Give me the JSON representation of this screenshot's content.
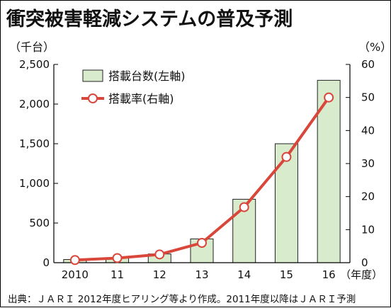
{
  "title": "衝突被害軽減システムの普及予測",
  "footer": "出典：ＪＡＲＩ 2012年度ヒアリング等より作成。2011年度以降はＪＡＲＩ予測",
  "chart_data": {
    "type": "bar",
    "categories": [
      "2010",
      "11",
      "12",
      "13",
      "14",
      "15",
      "16"
    ],
    "x_suffix": "（年度）",
    "series": [
      {
        "name": "搭載台数(左軸)",
        "type": "bar",
        "axis": "left",
        "values": [
          40,
          60,
          110,
          300,
          800,
          1500,
          2300
        ]
      },
      {
        "name": "搭載率(右軸)",
        "type": "line",
        "axis": "right",
        "values": [
          0.8,
          1.4,
          2.5,
          6.0,
          16.8,
          32.0,
          50.0
        ]
      }
    ],
    "left_axis": {
      "unit": "（千台）",
      "ylim": [
        0,
        2500
      ],
      "ticks": [
        "0",
        "500",
        "1,000",
        "1,500",
        "2,000",
        "2,500"
      ]
    },
    "right_axis": {
      "unit": "（%）",
      "ylim": [
        0,
        60
      ],
      "ticks": [
        "0",
        "10",
        "20",
        "30",
        "40",
        "50",
        "60"
      ]
    },
    "legend_position": "top-left",
    "colors": {
      "bar_fill": "#d8ebcd",
      "bar_stroke": "#222222",
      "line": "#d9463a",
      "marker_fill": "#ffffff"
    },
    "grid": false
  }
}
